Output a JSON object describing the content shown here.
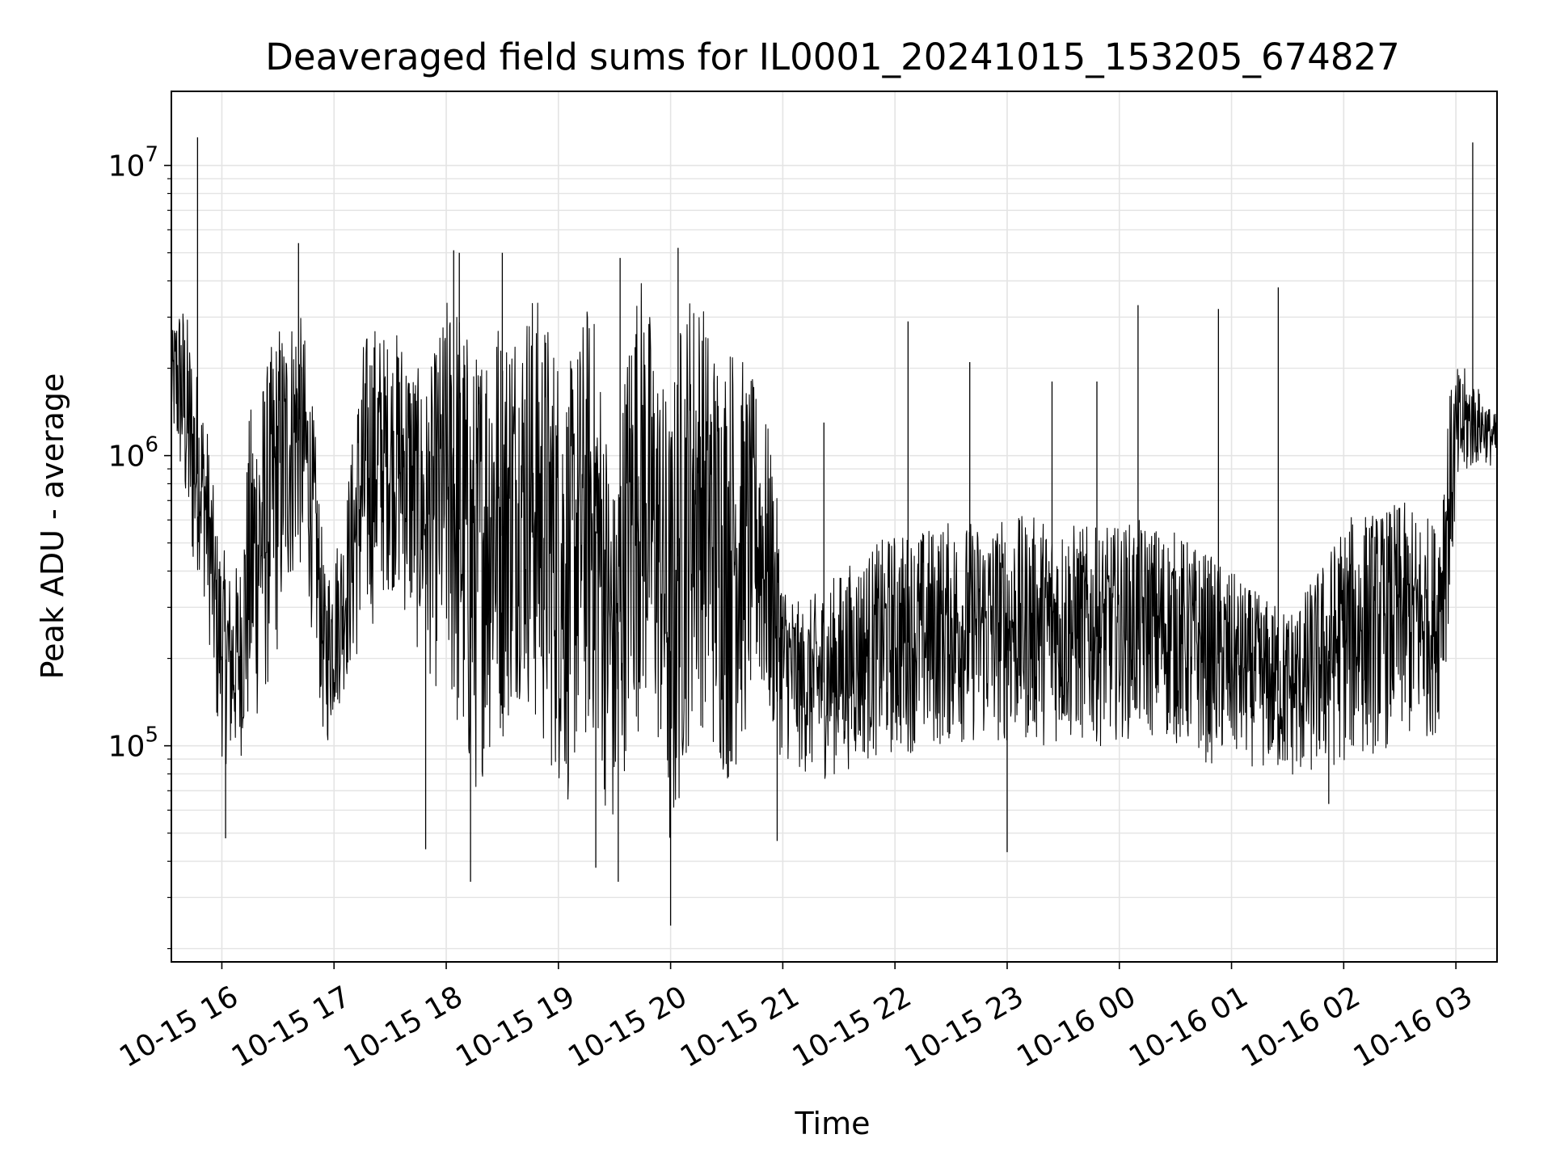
{
  "chart_data": {
    "type": "line",
    "title": "Deaveraged field sums for IL0001_20241015_153205_674827",
    "xlabel": "Time",
    "ylabel": "Peak ADU - average",
    "y_scale": "log",
    "ylim": [
      18000,
      18000000
    ],
    "xlim": [
      "2024-10-15 15:33",
      "2024-10-16 03:22"
    ],
    "grid": true,
    "line_color": "#000000",
    "x_ticks": [
      {
        "value": "2024-10-15 16:00",
        "label": "10-15 16"
      },
      {
        "value": "2024-10-15 17:00",
        "label": "10-15 17"
      },
      {
        "value": "2024-10-15 18:00",
        "label": "10-15 18"
      },
      {
        "value": "2024-10-15 19:00",
        "label": "10-15 19"
      },
      {
        "value": "2024-10-15 20:00",
        "label": "10-15 20"
      },
      {
        "value": "2024-10-15 21:00",
        "label": "10-15 21"
      },
      {
        "value": "2024-10-15 22:00",
        "label": "10-15 22"
      },
      {
        "value": "2024-10-15 23:00",
        "label": "10-15 23"
      },
      {
        "value": "2024-10-16 00:00",
        "label": "10-16 00"
      },
      {
        "value": "2024-10-16 01:00",
        "label": "10-16 01"
      },
      {
        "value": "2024-10-16 02:00",
        "label": "10-16 02"
      },
      {
        "value": "2024-10-16 03:00",
        "label": "10-16 03"
      }
    ],
    "y_ticks": [
      {
        "value": 100000,
        "base": "10",
        "exp": "5"
      },
      {
        "value": 1000000,
        "base": "10",
        "exp": "6"
      },
      {
        "value": 10000000,
        "base": "10",
        "exp": "7"
      }
    ],
    "series": [
      {
        "x": [
          "2024-10-15 15:33",
          "2024-10-15 15:36",
          "2024-10-15 15:39",
          "2024-10-15 15:42",
          "2024-10-15 15:45",
          "2024-10-15 15:48",
          "2024-10-15 15:51",
          "2024-10-15 15:54",
          "2024-10-15 15:57",
          "2024-10-15 16:00",
          "2024-10-15 16:05",
          "2024-10-15 16:10",
          "2024-10-15 16:15",
          "2024-10-15 16:20",
          "2024-10-15 16:25",
          "2024-10-15 16:30",
          "2024-10-15 16:35",
          "2024-10-15 16:40",
          "2024-10-15 16:45",
          "2024-10-15 16:50",
          "2024-10-15 16:55",
          "2024-10-15 17:00",
          "2024-10-15 17:05",
          "2024-10-15 17:10",
          "2024-10-15 17:15",
          "2024-10-15 17:20",
          "2024-10-15 17:25",
          "2024-10-15 17:30",
          "2024-10-15 17:35",
          "2024-10-15 17:40",
          "2024-10-15 17:45",
          "2024-10-15 17:50",
          "2024-10-15 17:55",
          "2024-10-15 18:00",
          "2024-10-15 18:05",
          "2024-10-15 18:10",
          "2024-10-15 18:15",
          "2024-10-15 18:20",
          "2024-10-15 18:25",
          "2024-10-15 18:30",
          "2024-10-15 18:35",
          "2024-10-15 18:40",
          "2024-10-15 18:45",
          "2024-10-15 18:50",
          "2024-10-15 18:55",
          "2024-10-15 19:00",
          "2024-10-15 19:05",
          "2024-10-15 19:10",
          "2024-10-15 19:15",
          "2024-10-15 19:20",
          "2024-10-15 19:25",
          "2024-10-15 19:30",
          "2024-10-15 19:35",
          "2024-10-15 19:40",
          "2024-10-15 19:45",
          "2024-10-15 19:50",
          "2024-10-15 19:55",
          "2024-10-15 20:00",
          "2024-10-15 20:05",
          "2024-10-15 20:10",
          "2024-10-15 20:15",
          "2024-10-15 20:20",
          "2024-10-15 20:25",
          "2024-10-15 20:30",
          "2024-10-15 20:35",
          "2024-10-15 20:40",
          "2024-10-15 20:45",
          "2024-10-15 20:50",
          "2024-10-15 20:55",
          "2024-10-15 21:00",
          "2024-10-15 21:10",
          "2024-10-15 21:20",
          "2024-10-15 21:30",
          "2024-10-15 21:40",
          "2024-10-15 21:50",
          "2024-10-15 22:00",
          "2024-10-15 22:10",
          "2024-10-15 22:20",
          "2024-10-15 22:30",
          "2024-10-15 22:40",
          "2024-10-15 22:50",
          "2024-10-15 23:00",
          "2024-10-15 23:10",
          "2024-10-15 23:20",
          "2024-10-15 23:30",
          "2024-10-15 23:40",
          "2024-10-15 23:50",
          "2024-10-16 00:00",
          "2024-10-16 00:10",
          "2024-10-16 00:20",
          "2024-10-16 00:30",
          "2024-10-16 00:40",
          "2024-10-16 00:50",
          "2024-10-16 01:00",
          "2024-10-16 01:10",
          "2024-10-16 01:20",
          "2024-10-16 01:30",
          "2024-10-16 01:40",
          "2024-10-16 01:50",
          "2024-10-16 02:00",
          "2024-10-16 02:10",
          "2024-10-16 02:20",
          "2024-10-16 02:30",
          "2024-10-16 02:40",
          "2024-10-16 02:50",
          "2024-10-16 02:55",
          "2024-10-16 03:00",
          "2024-10-16 03:05",
          "2024-10-16 03:10",
          "2024-10-16 03:15",
          "2024-10-16 03:20"
        ],
        "y_low": [
          1200000,
          900000,
          700000,
          450000,
          350000,
          400000,
          300000,
          200000,
          110000,
          90000,
          80000,
          90000,
          100000,
          120000,
          150000,
          200000,
          300000,
          400000,
          350000,
          200000,
          90000,
          120000,
          150000,
          180000,
          200000,
          250000,
          300000,
          350000,
          300000,
          250000,
          200000,
          180000,
          150000,
          150000,
          100000,
          70000,
          60000,
          80000,
          90000,
          100000,
          120000,
          150000,
          120000,
          90000,
          80000,
          70000,
          60000,
          80000,
          90000,
          100000,
          60000,
          40000,
          80000,
          100000,
          120000,
          100000,
          80000,
          30000,
          60000,
          100000,
          120000,
          100000,
          80000,
          70000,
          80000,
          100000,
          150000,
          120000,
          100000,
          90000,
          80000,
          75000,
          80000,
          85000,
          90000,
          90000,
          95000,
          95000,
          100000,
          100000,
          100000,
          100000,
          100000,
          100000,
          100000,
          100000,
          100000,
          105000,
          105000,
          105000,
          100000,
          90000,
          85000,
          85000,
          85000,
          80000,
          75000,
          75000,
          80000,
          85000,
          90000,
          95000,
          100000,
          100000,
          110000,
          200000,
          600000,
          800000,
          900000,
          950000,
          900000
        ],
        "y_high": [
          2500000,
          3500000,
          3500000,
          3000000,
          2300000,
          1800000,
          1500000,
          1000000,
          600000,
          500000,
          400000,
          450000,
          1500000,
          1800000,
          2200000,
          3000000,
          3000000,
          3500000,
          2500000,
          1200000,
          400000,
          500000,
          600000,
          1200000,
          2500000,
          3000000,
          2800000,
          2500000,
          2800000,
          2500000,
          2000000,
          1800000,
          2500000,
          3500000,
          4000000,
          3000000,
          2200000,
          3000000,
          4000000,
          2800000,
          3500000,
          3000000,
          4000000,
          3500000,
          3000000,
          2500000,
          2000000,
          2500000,
          3500000,
          3000000,
          1500000,
          800000,
          2000000,
          4000000,
          4500000,
          3000000,
          2000000,
          1500000,
          3000000,
          4000000,
          4000000,
          3000000,
          2500000,
          2500000,
          2800000,
          2000000,
          1800000,
          1500000,
          1000000,
          400000,
          300000,
          350000,
          400000,
          450000,
          500000,
          550000,
          550000,
          580000,
          600000,
          600000,
          600000,
          620000,
          620000,
          620000,
          600000,
          580000,
          560000,
          580000,
          600000,
          580000,
          550000,
          500000,
          450000,
          400000,
          350000,
          320000,
          300000,
          350000,
          450000,
          600000,
          650000,
          650000,
          700000,
          650000,
          600000,
          1500000,
          2000000,
          2000000,
          1800000,
          1600000,
          1400000
        ]
      }
    ],
    "spikes": [
      {
        "x": "2024-10-15 15:47",
        "y": 12500000
      },
      {
        "x": "2024-10-15 16:41",
        "y": 5400000
      },
      {
        "x": "2024-10-15 18:04",
        "y": 5100000
      },
      {
        "x": "2024-10-15 18:07",
        "y": 5000000
      },
      {
        "x": "2024-10-15 18:30",
        "y": 5000000
      },
      {
        "x": "2024-10-15 19:33",
        "y": 4800000
      },
      {
        "x": "2024-10-15 20:04",
        "y": 5200000
      },
      {
        "x": "2024-10-15 21:22",
        "y": 1300000
      },
      {
        "x": "2024-10-15 22:07",
        "y": 2900000
      },
      {
        "x": "2024-10-15 22:40",
        "y": 2100000
      },
      {
        "x": "2024-10-15 23:24",
        "y": 1800000
      },
      {
        "x": "2024-10-15 23:48",
        "y": 1800000
      },
      {
        "x": "2024-10-16 00:10",
        "y": 3300000
      },
      {
        "x": "2024-10-16 00:53",
        "y": 3200000
      },
      {
        "x": "2024-10-16 01:25",
        "y": 3800000
      },
      {
        "x": "2024-10-16 03:09",
        "y": 12000000
      }
    ],
    "dips": [
      {
        "x": "2024-10-15 16:02",
        "y": 48000
      },
      {
        "x": "2024-10-15 17:49",
        "y": 44000
      },
      {
        "x": "2024-10-15 18:13",
        "y": 34000
      },
      {
        "x": "2024-10-15 19:20",
        "y": 38000
      },
      {
        "x": "2024-10-15 19:32",
        "y": 34000
      },
      {
        "x": "2024-10-15 20:00",
        "y": 24000
      },
      {
        "x": "2024-10-15 20:57",
        "y": 47000
      },
      {
        "x": "2024-10-15 23:00",
        "y": 43000
      },
      {
        "x": "2024-10-16 01:52",
        "y": 63000
      }
    ]
  }
}
